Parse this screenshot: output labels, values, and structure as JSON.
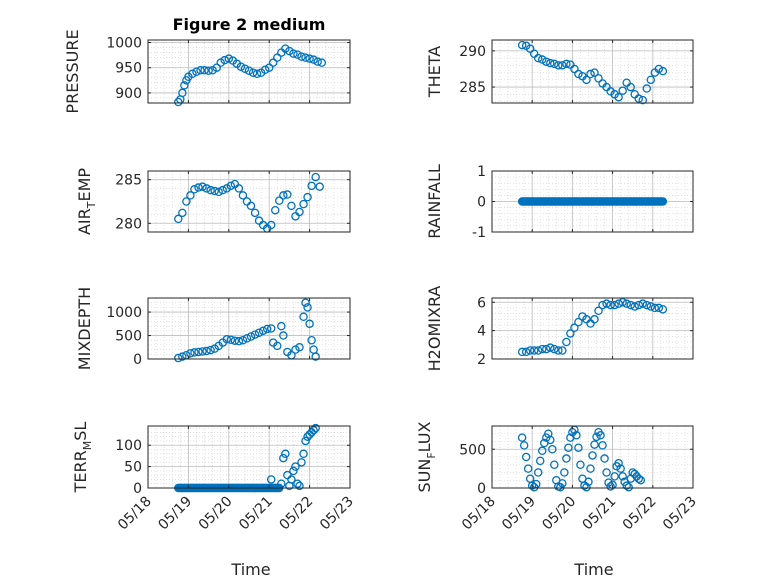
{
  "title": "Figure 2 medium",
  "xlabel": "Time",
  "x_ticks": [
    "05/18",
    "05/19",
    "05/20",
    "05/21",
    "05/22",
    "05/23"
  ],
  "marker_color": "#0072bd",
  "chart_data": [
    {
      "type": "scatter",
      "id": "pressure",
      "ylabel_main": "PRESSURE",
      "ylabel_sub": "",
      "ylim": [
        880,
        1005
      ],
      "yticks": [
        900,
        950,
        1000
      ],
      "title": "Figure 2 medium",
      "points": [
        [
          0.75,
          882
        ],
        [
          0.8,
          887
        ],
        [
          0.85,
          900
        ],
        [
          0.9,
          915
        ],
        [
          0.95,
          925
        ],
        [
          1.0,
          932
        ],
        [
          1.1,
          938
        ],
        [
          1.2,
          942
        ],
        [
          1.3,
          945
        ],
        [
          1.4,
          945
        ],
        [
          1.5,
          944
        ],
        [
          1.6,
          945
        ],
        [
          1.7,
          950
        ],
        [
          1.8,
          960
        ],
        [
          1.9,
          965
        ],
        [
          2.0,
          968
        ],
        [
          2.1,
          964
        ],
        [
          2.2,
          958
        ],
        [
          2.3,
          952
        ],
        [
          2.4,
          948
        ],
        [
          2.5,
          944
        ],
        [
          2.6,
          940
        ],
        [
          2.7,
          938
        ],
        [
          2.8,
          940
        ],
        [
          2.9,
          946
        ],
        [
          3.0,
          950
        ],
        [
          3.1,
          960
        ],
        [
          3.2,
          970
        ],
        [
          3.3,
          980
        ],
        [
          3.4,
          988
        ],
        [
          3.5,
          983
        ],
        [
          3.6,
          978
        ],
        [
          3.7,
          976
        ],
        [
          3.8,
          972
        ],
        [
          3.9,
          970
        ],
        [
          4.0,
          968
        ],
        [
          4.1,
          966
        ],
        [
          4.2,
          962
        ],
        [
          4.3,
          960
        ]
      ]
    },
    {
      "type": "scatter",
      "id": "theta",
      "ylabel_main": "THETA",
      "ylabel_sub": "",
      "ylim": [
        282.8,
        291.5
      ],
      "yticks": [
        285,
        290
      ],
      "points": [
        [
          0.75,
          290.8
        ],
        [
          0.85,
          290.7
        ],
        [
          0.95,
          290.3
        ],
        [
          1.05,
          289.6
        ],
        [
          1.15,
          289.0
        ],
        [
          1.25,
          288.8
        ],
        [
          1.35,
          288.5
        ],
        [
          1.45,
          288.3
        ],
        [
          1.55,
          288.2
        ],
        [
          1.65,
          288.0
        ],
        [
          1.75,
          288.0
        ],
        [
          1.85,
          288.2
        ],
        [
          1.95,
          288.1
        ],
        [
          2.05,
          287.5
        ],
        [
          2.15,
          286.8
        ],
        [
          2.25,
          286.5
        ],
        [
          2.35,
          286.0
        ],
        [
          2.45,
          286.8
        ],
        [
          2.55,
          287.0
        ],
        [
          2.65,
          286.2
        ],
        [
          2.75,
          285.5
        ],
        [
          2.85,
          285.0
        ],
        [
          2.95,
          284.4
        ],
        [
          3.05,
          284.0
        ],
        [
          3.15,
          283.6
        ],
        [
          3.25,
          284.5
        ],
        [
          3.35,
          285.6
        ],
        [
          3.45,
          285.0
        ],
        [
          3.55,
          284.0
        ],
        [
          3.65,
          283.4
        ],
        [
          3.75,
          283.2
        ],
        [
          3.85,
          284.8
        ],
        [
          3.95,
          286.0
        ],
        [
          4.05,
          287.0
        ],
        [
          4.15,
          287.5
        ],
        [
          4.25,
          287.2
        ]
      ]
    },
    {
      "type": "scatter",
      "id": "air_temp",
      "ylabel_main": "AIR",
      "ylabel_sub": "T",
      "ylabel_tail": "EMP",
      "ylim": [
        279,
        286
      ],
      "yticks": [
        280,
        285
      ],
      "points": [
        [
          0.75,
          280.5
        ],
        [
          0.85,
          281.2
        ],
        [
          0.95,
          282.5
        ],
        [
          1.05,
          283.2
        ],
        [
          1.15,
          283.9
        ],
        [
          1.25,
          284.1
        ],
        [
          1.35,
          284.2
        ],
        [
          1.45,
          284.0
        ],
        [
          1.55,
          283.8
        ],
        [
          1.65,
          283.7
        ],
        [
          1.75,
          283.6
        ],
        [
          1.85,
          283.8
        ],
        [
          1.95,
          284.0
        ],
        [
          2.05,
          284.3
        ],
        [
          2.15,
          284.5
        ],
        [
          2.25,
          284.0
        ],
        [
          2.35,
          283.2
        ],
        [
          2.45,
          282.5
        ],
        [
          2.55,
          282.0
        ],
        [
          2.65,
          281.2
        ],
        [
          2.75,
          280.3
        ],
        [
          2.85,
          279.8
        ],
        [
          2.95,
          279.4
        ],
        [
          3.05,
          279.8
        ],
        [
          3.15,
          281.5
        ],
        [
          3.25,
          282.6
        ],
        [
          3.35,
          283.2
        ],
        [
          3.45,
          283.3
        ],
        [
          3.55,
          282.0
        ],
        [
          3.65,
          280.8
        ],
        [
          3.75,
          281.3
        ],
        [
          3.85,
          282.2
        ],
        [
          3.95,
          283.0
        ],
        [
          4.05,
          284.3
        ],
        [
          4.15,
          285.3
        ],
        [
          4.25,
          284.2
        ]
      ]
    },
    {
      "type": "scatter",
      "id": "rainfall",
      "ylabel_main": "RAINFALL",
      "ylabel_sub": "",
      "ylim": [
        -1,
        1
      ],
      "yticks": [
        -1,
        0,
        1
      ],
      "x_range": [
        0.75,
        4.25
      ],
      "constant": 0
    },
    {
      "type": "scatter",
      "id": "mixdepth",
      "ylabel_main": "MIXDEPTH",
      "ylabel_sub": "",
      "ylim": [
        0,
        1300
      ],
      "yticks": [
        0,
        500,
        1000
      ],
      "points": [
        [
          0.75,
          20
        ],
        [
          0.85,
          50
        ],
        [
          0.95,
          80
        ],
        [
          1.05,
          120
        ],
        [
          1.15,
          140
        ],
        [
          1.25,
          150
        ],
        [
          1.35,
          160
        ],
        [
          1.45,
          170
        ],
        [
          1.55,
          190
        ],
        [
          1.65,
          220
        ],
        [
          1.75,
          280
        ],
        [
          1.85,
          350
        ],
        [
          1.95,
          420
        ],
        [
          2.05,
          410
        ],
        [
          2.15,
          390
        ],
        [
          2.25,
          380
        ],
        [
          2.35,
          400
        ],
        [
          2.45,
          440
        ],
        [
          2.55,
          480
        ],
        [
          2.65,
          520
        ],
        [
          2.75,
          560
        ],
        [
          2.85,
          600
        ],
        [
          2.95,
          640
        ],
        [
          3.05,
          650
        ],
        [
          3.1,
          350
        ],
        [
          3.2,
          280
        ],
        [
          3.3,
          700
        ],
        [
          3.35,
          500
        ],
        [
          3.45,
          150
        ],
        [
          3.55,
          80
        ],
        [
          3.65,
          200
        ],
        [
          3.75,
          250
        ],
        [
          3.85,
          900
        ],
        [
          3.9,
          1200
        ],
        [
          3.95,
          1100
        ],
        [
          4.0,
          750
        ],
        [
          4.05,
          400
        ],
        [
          4.1,
          200
        ],
        [
          4.15,
          50
        ]
      ]
    },
    {
      "type": "scatter",
      "id": "h2omixra",
      "ylabel_main": "H2OMIXRA",
      "ylabel_sub": "",
      "ylim": [
        2,
        6.3
      ],
      "yticks": [
        2,
        4,
        6
      ],
      "points": [
        [
          0.75,
          2.5
        ],
        [
          0.85,
          2.5
        ],
        [
          0.95,
          2.6
        ],
        [
          1.05,
          2.6
        ],
        [
          1.15,
          2.6
        ],
        [
          1.25,
          2.7
        ],
        [
          1.35,
          2.7
        ],
        [
          1.45,
          2.8
        ],
        [
          1.55,
          2.7
        ],
        [
          1.65,
          2.6
        ],
        [
          1.75,
          2.6
        ],
        [
          1.85,
          3.2
        ],
        [
          1.95,
          3.8
        ],
        [
          2.05,
          4.2
        ],
        [
          2.15,
          4.6
        ],
        [
          2.25,
          5.0
        ],
        [
          2.35,
          4.8
        ],
        [
          2.45,
          4.5
        ],
        [
          2.55,
          4.8
        ],
        [
          2.65,
          5.4
        ],
        [
          2.75,
          5.8
        ],
        [
          2.85,
          5.9
        ],
        [
          2.95,
          5.8
        ],
        [
          3.05,
          5.8
        ],
        [
          3.15,
          5.9
        ],
        [
          3.25,
          6.0
        ],
        [
          3.35,
          5.9
        ],
        [
          3.45,
          5.8
        ],
        [
          3.55,
          5.7
        ],
        [
          3.65,
          5.8
        ],
        [
          3.75,
          5.9
        ],
        [
          3.85,
          5.8
        ],
        [
          3.95,
          5.7
        ],
        [
          4.05,
          5.6
        ],
        [
          4.15,
          5.6
        ],
        [
          4.25,
          5.5
        ]
      ]
    },
    {
      "type": "scatter",
      "id": "terr_msl",
      "ylabel_main": "TERR",
      "ylabel_sub": "M",
      "ylabel_tail": "SL",
      "ylim": [
        0,
        145
      ],
      "yticks": [
        0,
        50,
        100
      ],
      "points": [
        [
          3.05,
          20
        ],
        [
          3.3,
          10
        ],
        [
          3.35,
          70
        ],
        [
          3.4,
          80
        ],
        [
          3.45,
          30
        ],
        [
          3.5,
          5
        ],
        [
          3.55,
          20
        ],
        [
          3.6,
          40
        ],
        [
          3.65,
          50
        ],
        [
          3.7,
          10
        ],
        [
          3.75,
          5
        ],
        [
          3.8,
          60
        ],
        [
          3.85,
          80
        ],
        [
          3.9,
          110
        ],
        [
          3.95,
          120
        ],
        [
          4.0,
          125
        ],
        [
          4.05,
          130
        ],
        [
          4.1,
          135
        ],
        [
          4.15,
          140
        ]
      ],
      "flat_zero_range": [
        0.75,
        3.25
      ]
    },
    {
      "type": "scatter",
      "id": "sun_flux",
      "ylabel_main": "SUN",
      "ylabel_sub": "F",
      "ylabel_tail": "LUX",
      "ylim": [
        0,
        800
      ],
      "yticks": [
        0,
        500
      ],
      "points": [
        [
          0.75,
          650
        ],
        [
          0.8,
          550
        ],
        [
          0.85,
          400
        ],
        [
          0.9,
          250
        ],
        [
          0.95,
          120
        ],
        [
          1.0,
          30
        ],
        [
          1.05,
          10
        ],
        [
          1.1,
          50
        ],
        [
          1.15,
          200
        ],
        [
          1.2,
          350
        ],
        [
          1.25,
          480
        ],
        [
          1.3,
          580
        ],
        [
          1.35,
          650
        ],
        [
          1.4,
          700
        ],
        [
          1.45,
          620
        ],
        [
          1.5,
          500
        ],
        [
          1.55,
          300
        ],
        [
          1.6,
          100
        ],
        [
          1.65,
          20
        ],
        [
          1.7,
          10
        ],
        [
          1.75,
          60
        ],
        [
          1.8,
          200
        ],
        [
          1.85,
          380
        ],
        [
          1.9,
          520
        ],
        [
          1.95,
          650
        ],
        [
          2.0,
          720
        ],
        [
          2.05,
          750
        ],
        [
          2.1,
          680
        ],
        [
          2.15,
          520
        ],
        [
          2.2,
          300
        ],
        [
          2.25,
          120
        ],
        [
          2.3,
          30
        ],
        [
          2.35,
          10
        ],
        [
          2.4,
          80
        ],
        [
          2.45,
          250
        ],
        [
          2.5,
          420
        ],
        [
          2.55,
          560
        ],
        [
          2.6,
          660
        ],
        [
          2.65,
          720
        ],
        [
          2.7,
          680
        ],
        [
          2.75,
          550
        ],
        [
          2.8,
          380
        ],
        [
          2.85,
          200
        ],
        [
          2.9,
          70
        ],
        [
          2.95,
          20
        ],
        [
          3.0,
          40
        ],
        [
          3.05,
          150
        ],
        [
          3.1,
          280
        ],
        [
          3.15,
          320
        ],
        [
          3.2,
          250
        ],
        [
          3.25,
          150
        ],
        [
          3.3,
          80
        ],
        [
          3.35,
          30
        ],
        [
          3.4,
          10
        ],
        [
          3.45,
          120
        ],
        [
          3.5,
          200
        ],
        [
          3.55,
          180
        ],
        [
          3.6,
          150
        ],
        [
          3.65,
          120
        ],
        [
          3.7,
          100
        ]
      ]
    }
  ]
}
